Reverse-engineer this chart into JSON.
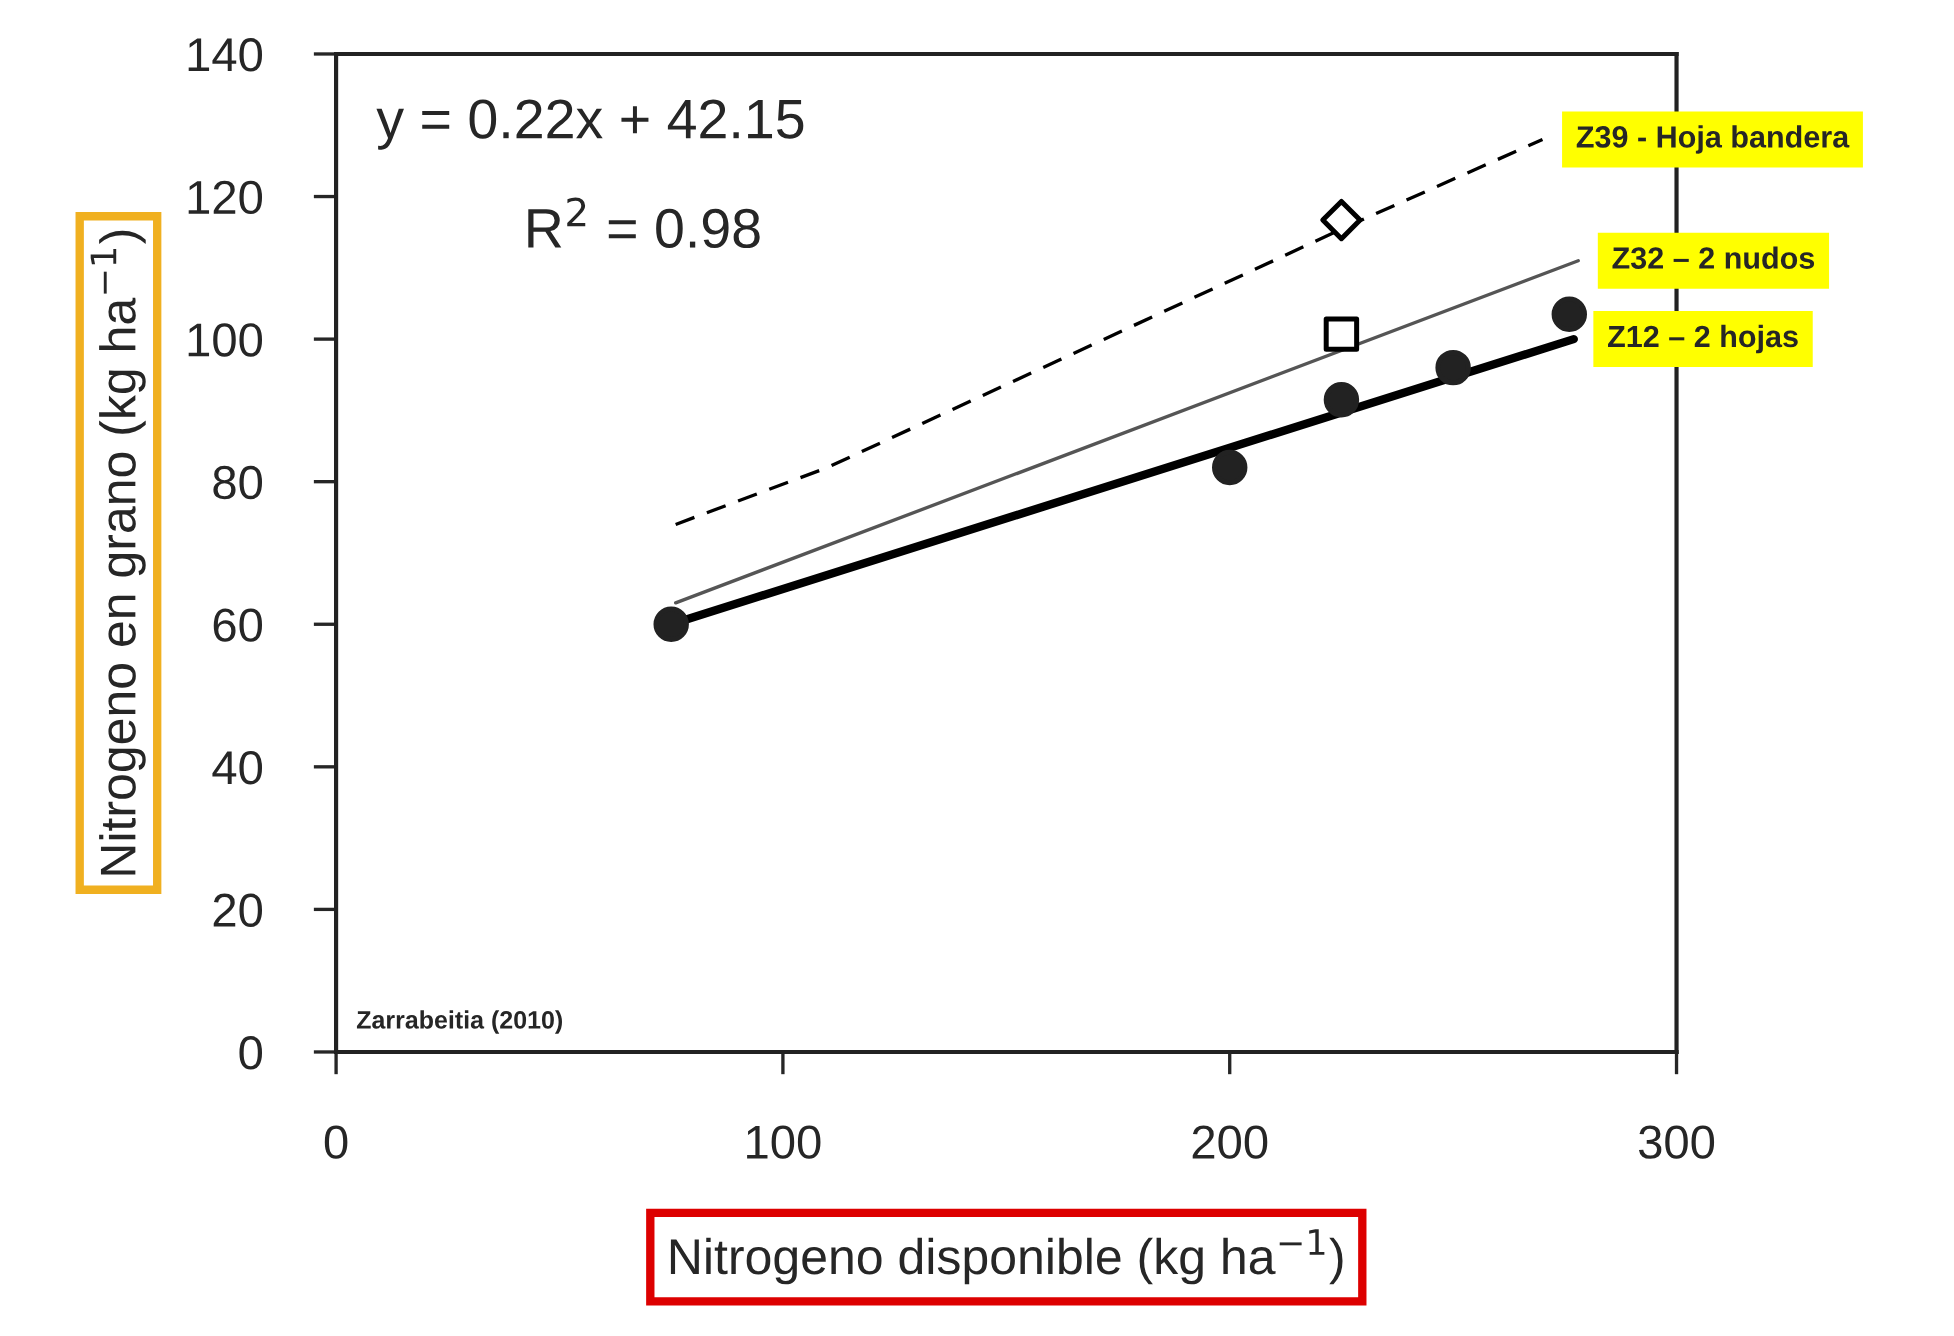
{
  "chart_data": {
    "type": "scatter",
    "xlabel": "Nitrogeno disponible (kg ha$^{−1}$)",
    "ylabel": "Nitrogeno en grano (kg ha$^{−1}$)",
    "xlim": [
      0,
      300
    ],
    "xticks": [
      0,
      100,
      200,
      300
    ],
    "ylim": [
      0,
      140
    ],
    "yticks": [
      0,
      20,
      40,
      60,
      80,
      100,
      120,
      140
    ],
    "grid": false,
    "legend": false,
    "annotations": [
      "y = 0.22x + 42.15",
      "R$^{2}$ = 0.98",
      "Zarrabeitia (2010)"
    ],
    "series": [
      {
        "name": "Z39 - Hoja bandera",
        "type": "line",
        "line_style": "dashed",
        "marker": "none",
        "color": "#000000",
        "x": [
          76,
          110,
          227,
          270
        ],
        "values": [
          74,
          82,
          116,
          128
        ]
      },
      {
        "marker": "diamond",
        "color": "#000000",
        "x": [
          225
        ],
        "values": [
          116.7
        ]
      },
      {
        "name": "Z32 – 2 nudos",
        "type": "line",
        "line_style": "solid",
        "marker": "none",
        "color": "#555555",
        "x": [
          76,
          278
        ],
        "values": [
          63,
          111
        ]
      },
      {
        "marker": "square",
        "color": "#000000",
        "x": [
          225
        ],
        "values": [
          100.7
        ]
      },
      {
        "name": "Z12 – 2 hojas",
        "type": "line",
        "line_style": "solid",
        "marker": "none",
        "color": "#000000",
        "x": [
          75,
          277
        ],
        "values": [
          60,
          100
        ]
      },
      {
        "marker": "circle",
        "color": "#222222",
        "x": [
          75,
          200,
          225,
          250,
          276
        ],
        "values": [
          60,
          82,
          91.5,
          96,
          103.5
        ]
      }
    ]
  }
}
